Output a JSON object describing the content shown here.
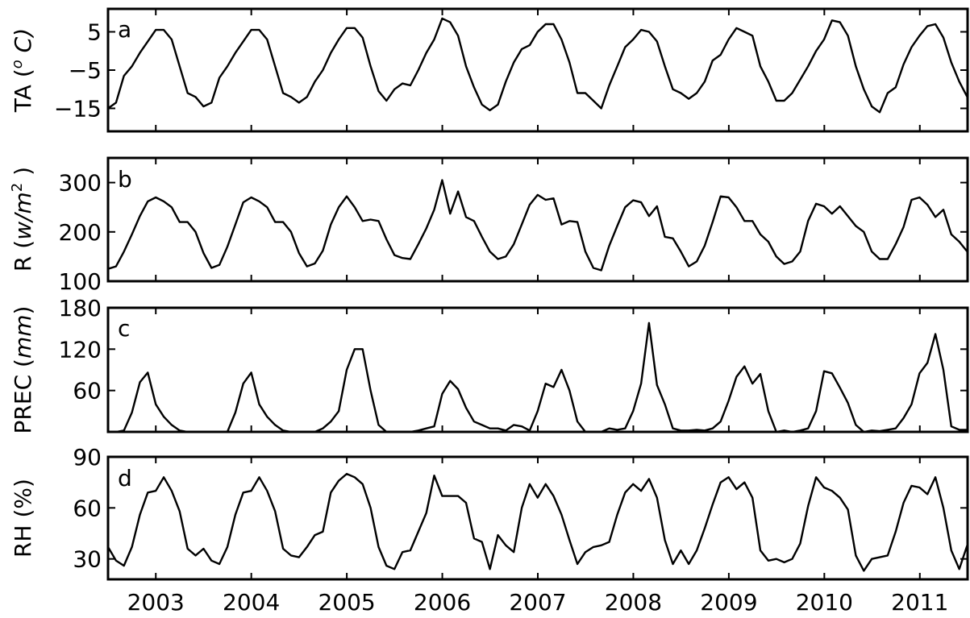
{
  "chart_data": [
    {
      "type": "line",
      "panel_label": "a",
      "ylabel": "TA (",
      "ylabel_superscript": "o",
      "ylabel_unit": " C)",
      "ylim": [
        -21,
        11
      ],
      "yticks": [
        5,
        -5,
        -15
      ],
      "yticklabels": [
        "5",
        "−5",
        "−15"
      ],
      "xlim": [
        2002.5,
        2011.5
      ],
      "x_start": 2002.5,
      "x_step": 0.0833,
      "series": [
        {
          "values": [
            -15,
            -13.5,
            -6.5,
            -4,
            -0.5,
            2.5,
            5.5,
            5.5,
            3,
            -4,
            -11,
            -12,
            -14.5,
            -13.5,
            -7,
            -4,
            -0.5,
            2.5,
            5.5,
            5.5,
            3,
            -4,
            -11,
            -12,
            -13.5,
            -12,
            -8,
            -5,
            -0.5,
            3,
            6,
            6,
            3.5,
            -4,
            -10.5,
            -13,
            -10,
            -8.5,
            -9,
            -5,
            -0.5,
            3,
            8.5,
            7.5,
            4,
            -4,
            -9.5,
            -14,
            -15.5,
            -14,
            -8,
            -3,
            0.5,
            1.5,
            5,
            7,
            7,
            3,
            -3,
            -11,
            -11,
            -13,
            -15,
            -9,
            -4,
            1,
            3,
            5.5,
            5,
            2.5,
            -4,
            -10,
            -11,
            -12.5,
            -11,
            -8,
            -2.5,
            -1,
            3,
            6,
            5,
            4,
            -4,
            -8,
            -13,
            -13,
            -11,
            -7.5,
            -4,
            0,
            3,
            8,
            7.5,
            4,
            -4,
            -10,
            -14.5,
            -16,
            -11,
            -9.5,
            -3.5,
            1,
            4,
            6.5,
            7,
            3.5,
            -3,
            -8,
            -12,
            -16
          ]
        }
      ]
    },
    {
      "type": "line",
      "panel_label": "b",
      "ylabel": "R (",
      "ylabel_unit": "w/m",
      "ylabel_superscript": "2",
      "ylabel_close": " )",
      "ylim": [
        100,
        350
      ],
      "yticks": [
        300,
        200,
        100
      ],
      "yticklabels": [
        "300",
        "200",
        "100"
      ],
      "xlim": [
        2002.5,
        2011.5
      ],
      "x_start": 2002.5,
      "x_step": 0.0833,
      "series": [
        {
          "values": [
            125,
            130,
            160,
            195,
            232,
            262,
            270,
            262,
            250,
            220,
            220,
            200,
            157,
            127,
            133,
            170,
            215,
            260,
            270,
            262,
            250,
            220,
            220,
            200,
            157,
            130,
            136,
            162,
            215,
            250,
            272,
            250,
            222,
            225,
            222,
            185,
            153,
            147,
            145,
            175,
            207,
            245,
            305,
            237,
            282,
            230,
            222,
            190,
            160,
            145,
            150,
            175,
            215,
            255,
            275,
            265,
            268,
            215,
            222,
            220,
            160,
            127,
            122,
            172,
            212,
            250,
            264,
            260,
            232,
            252,
            190,
            187,
            160,
            130,
            140,
            172,
            220,
            272,
            270,
            250,
            222,
            222,
            195,
            180,
            150,
            135,
            140,
            160,
            222,
            257,
            252,
            237,
            252,
            232,
            212,
            200,
            160,
            145,
            145,
            175,
            210,
            265,
            270,
            255,
            230,
            245,
            195,
            180,
            160,
            137
          ]
        }
      ]
    },
    {
      "type": "line",
      "panel_label": "c",
      "ylabel": "PREC (",
      "ylabel_unit": "mm",
      "ylabel_close": ")",
      "ylim": [
        0,
        180
      ],
      "yticks": [
        180,
        120,
        60
      ],
      "yticklabels": [
        "180",
        "120",
        "60"
      ],
      "xlim": [
        2002.5,
        2011.5
      ],
      "x_start": 2002.5,
      "x_step": 0.0833,
      "series": [
        {
          "values": [
            0,
            0,
            2,
            28,
            72,
            86,
            40,
            22,
            10,
            2,
            0,
            0,
            0,
            0,
            0,
            0,
            28,
            70,
            86,
            40,
            22,
            10,
            2,
            0,
            0,
            0,
            0,
            5,
            15,
            30,
            90,
            120,
            120,
            60,
            10,
            0,
            0,
            0,
            0,
            2,
            5,
            8,
            55,
            74,
            62,
            35,
            15,
            10,
            5,
            5,
            2,
            10,
            8,
            2,
            30,
            70,
            65,
            90,
            60,
            15,
            0,
            0,
            0,
            5,
            3,
            5,
            30,
            70,
            158,
            68,
            40,
            5,
            2,
            2,
            3,
            2,
            5,
            15,
            45,
            80,
            95,
            70,
            84,
            30,
            0,
            2,
            0,
            2,
            5,
            30,
            88,
            85,
            64,
            42,
            10,
            0,
            2,
            1,
            3,
            5,
            20,
            40,
            85,
            100,
            142,
            90,
            8,
            3,
            3,
            1
          ]
        }
      ]
    },
    {
      "type": "line",
      "panel_label": "d",
      "ylabel": "RH (%)",
      "ylim": [
        18,
        90
      ],
      "yticks": [
        90,
        60,
        30
      ],
      "yticklabels": [
        "90",
        "60",
        "30"
      ],
      "xlim": [
        2002.5,
        2011.5
      ],
      "x_start": 2002.5,
      "x_step": 0.0833,
      "xticks": [
        2003,
        2004,
        2005,
        2006,
        2007,
        2008,
        2009,
        2010,
        2011
      ],
      "xticklabels": [
        "2003",
        "2004",
        "2005",
        "2006",
        "2007",
        "2008",
        "2009",
        "2010",
        "2011"
      ],
      "series": [
        {
          "values": [
            37,
            29,
            26,
            37,
            56,
            69,
            70,
            78,
            70,
            58,
            36,
            32,
            36,
            29,
            27,
            37,
            56,
            69,
            70,
            78,
            70,
            58,
            36,
            32,
            31,
            37,
            44,
            46,
            69,
            76,
            80,
            78,
            74,
            60,
            37,
            26,
            24,
            34,
            35,
            46,
            57,
            79,
            67,
            67,
            67,
            63,
            42,
            40,
            24,
            44,
            38,
            34,
            60,
            74,
            66,
            74,
            67,
            56,
            41,
            27,
            34,
            37,
            38,
            40,
            56,
            69,
            74,
            70,
            77,
            66,
            41,
            27,
            35,
            27,
            35,
            48,
            62,
            75,
            78,
            71,
            75,
            66,
            35,
            29,
            30,
            28,
            30,
            39,
            61,
            78,
            72,
            70,
            66,
            59,
            32,
            23,
            30,
            31,
            32,
            46,
            63,
            73,
            72,
            68,
            78,
            60,
            35,
            24,
            38,
            33
          ]
        }
      ]
    }
  ]
}
